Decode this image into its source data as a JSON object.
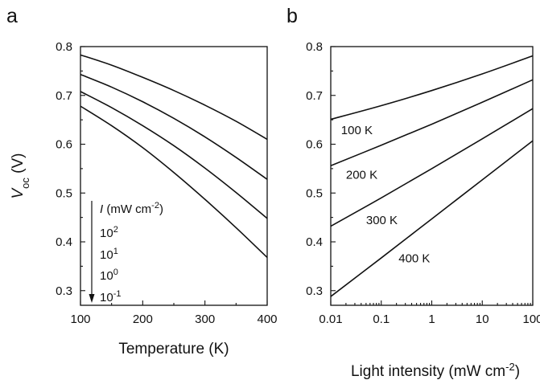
{
  "chart_data": [
    {
      "panel": "a",
      "type": "line",
      "xlabel": "Temperature (K)",
      "ylabel_main": "V",
      "ylabel_sub": "oc",
      "ylabel_unit": " (V)",
      "xlim": [
        100,
        400
      ],
      "ylim": [
        0.27,
        0.8
      ],
      "x_ticks": [
        100,
        200,
        300,
        400
      ],
      "y_ticks": [
        0.3,
        0.4,
        0.5,
        0.6,
        0.7,
        0.8
      ],
      "legend": {
        "title_symbol": "I",
        "title_rest": " (mW cm",
        "title_exp": "-2",
        "title_close": ")",
        "entries": [
          {
            "base": "10",
            "exp": "2"
          },
          {
            "base": "10",
            "exp": "1"
          },
          {
            "base": "10",
            "exp": "0"
          },
          {
            "base": "10",
            "exp": "-1"
          }
        ]
      },
      "x": [
        100,
        150,
        200,
        250,
        300,
        350,
        400
      ],
      "series": [
        {
          "values": [
            0.783,
            0.762,
            0.737,
            0.71,
            0.68,
            0.647,
            0.61
          ]
        },
        {
          "values": [
            0.743,
            0.717,
            0.687,
            0.653,
            0.615,
            0.573,
            0.528
          ]
        },
        {
          "values": [
            0.708,
            0.675,
            0.638,
            0.597,
            0.551,
            0.501,
            0.448
          ]
        },
        {
          "values": [
            0.678,
            0.638,
            0.593,
            0.542,
            0.487,
            0.429,
            0.368
          ]
        }
      ]
    },
    {
      "panel": "b",
      "type": "line",
      "x_scale": "log",
      "xlabel_main": "Light intensity (mW cm",
      "xlabel_exp": "-2",
      "xlabel_close": ")",
      "xlim": [
        0.01,
        100
      ],
      "ylim": [
        0.27,
        0.8
      ],
      "x_ticks": [
        "0.01",
        "0.1",
        "1",
        "10",
        "100"
      ],
      "y_ticks": [
        0.3,
        0.4,
        0.5,
        0.6,
        0.7,
        0.8
      ],
      "x": [
        0.01,
        0.1,
        1,
        10,
        100
      ],
      "series": [
        {
          "name": "100 K",
          "values": [
            0.651,
            0.679,
            0.71,
            0.744,
            0.781
          ]
        },
        {
          "name": "200 K",
          "values": [
            0.556,
            0.598,
            0.641,
            0.686,
            0.732
          ]
        },
        {
          "name": "300 K",
          "values": [
            0.432,
            0.49,
            0.55,
            0.611,
            0.673
          ]
        },
        {
          "name": "400 K",
          "values": [
            0.288,
            0.367,
            0.447,
            0.527,
            0.607
          ]
        }
      ]
    }
  ]
}
